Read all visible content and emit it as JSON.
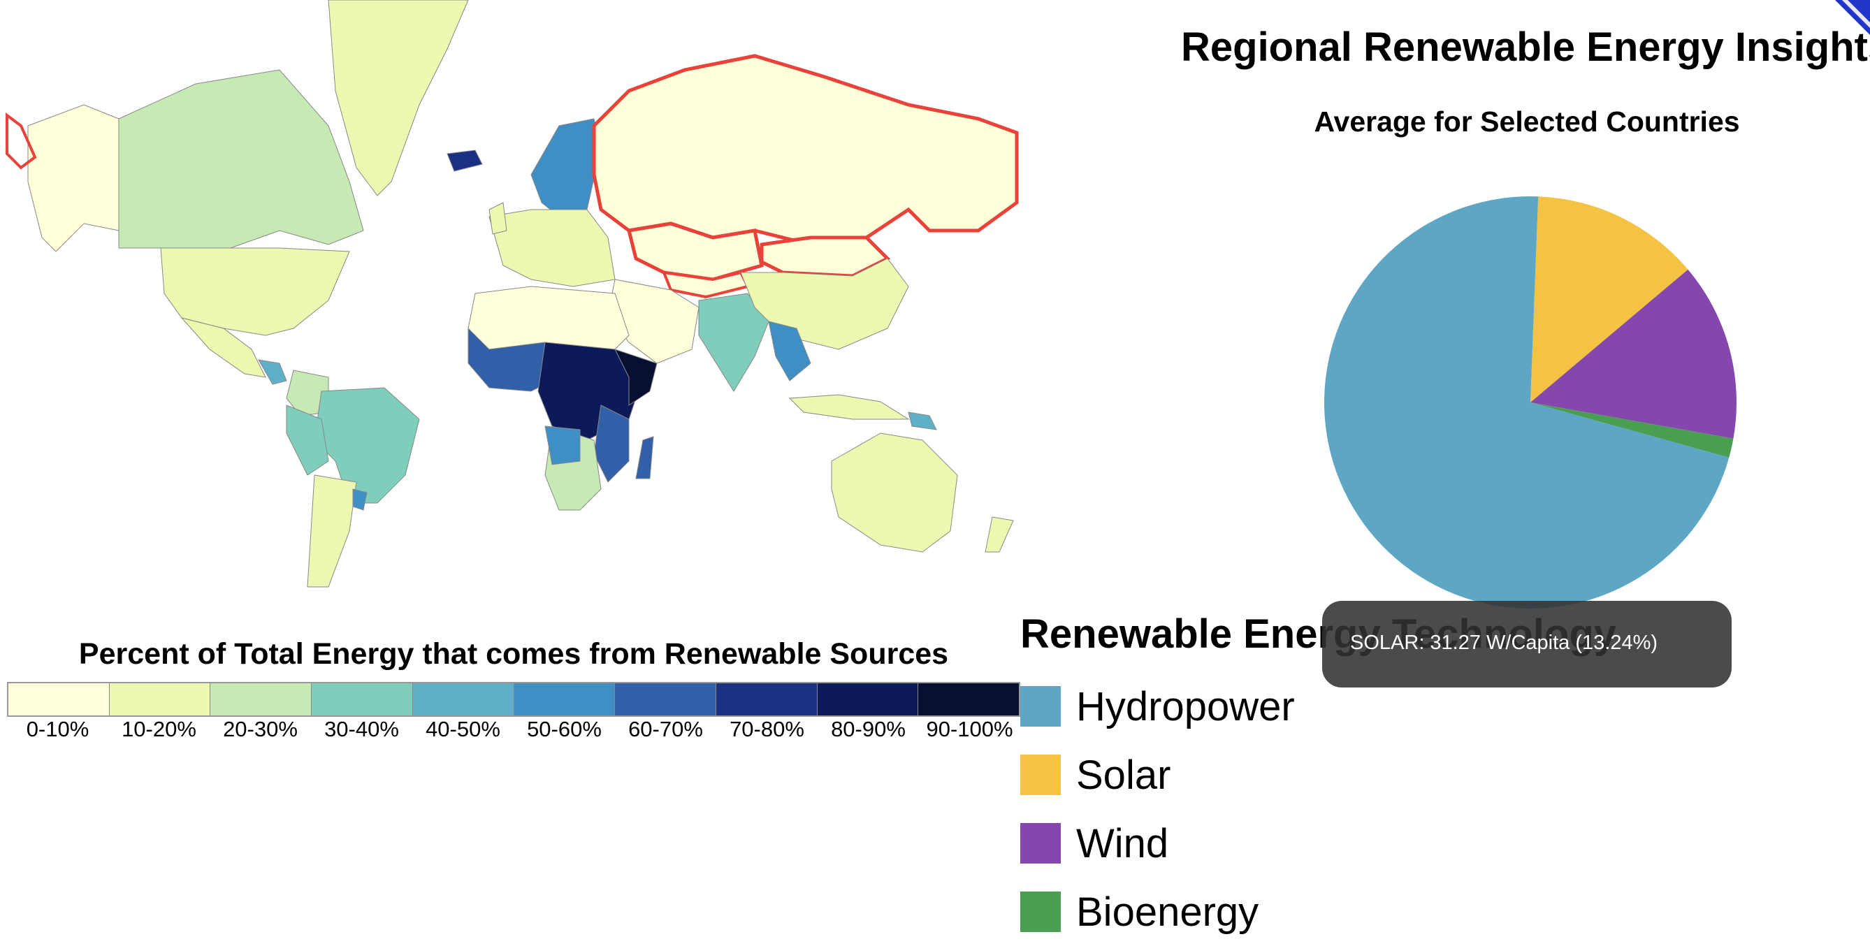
{
  "header": {
    "title": "Regional Renewable Energy Insights"
  },
  "map_legend": {
    "title": "Percent of Total Energy that comes from Renewable Sources",
    "bins": [
      {
        "label": "0-10%",
        "color": "#ffffd9"
      },
      {
        "label": "10-20%",
        "color": "#edf8b1"
      },
      {
        "label": "20-30%",
        "color": "#c7e9b4"
      },
      {
        "label": "30-40%",
        "color": "#7fcdbb"
      },
      {
        "label": "40-50%",
        "color": "#5fb0c7"
      },
      {
        "label": "50-60%",
        "color": "#3f8fc4"
      },
      {
        "label": "60-70%",
        "color": "#3160a8"
      },
      {
        "label": "70-80%",
        "color": "#1b2f84"
      },
      {
        "label": "80-90%",
        "color": "#0d1a5a"
      },
      {
        "label": "90-100%",
        "color": "#081031"
      }
    ]
  },
  "map": {
    "highlight_color": "#e8423a"
  },
  "pie": {
    "title": "Average for Selected Countries"
  },
  "chart_data": {
    "type": "pie",
    "title": "Average for Selected Countries",
    "slices": [
      {
        "name": "Hydropower",
        "percent": 71.3,
        "color": "#5da7c5"
      },
      {
        "name": "Solar",
        "percent": 13.24,
        "color": "#f4c343"
      },
      {
        "name": "Wind",
        "percent": 13.96,
        "color": "#8547ad"
      },
      {
        "name": "Bioenergy",
        "percent": 1.5,
        "color": "#4a9e52"
      }
    ],
    "start_slice": "Solar"
  },
  "tooltip": {
    "text": "SOLAR: 31.27 W/Capita (13.24%)"
  },
  "tech_legend": {
    "title": "Renewable Energy Technology",
    "items": [
      {
        "label": "Hydropower",
        "color": "#5da7c5"
      },
      {
        "label": "Solar",
        "color": "#f4c343"
      },
      {
        "label": "Wind",
        "color": "#8547ad"
      },
      {
        "label": "Bioenergy",
        "color": "#4a9e52"
      }
    ]
  }
}
